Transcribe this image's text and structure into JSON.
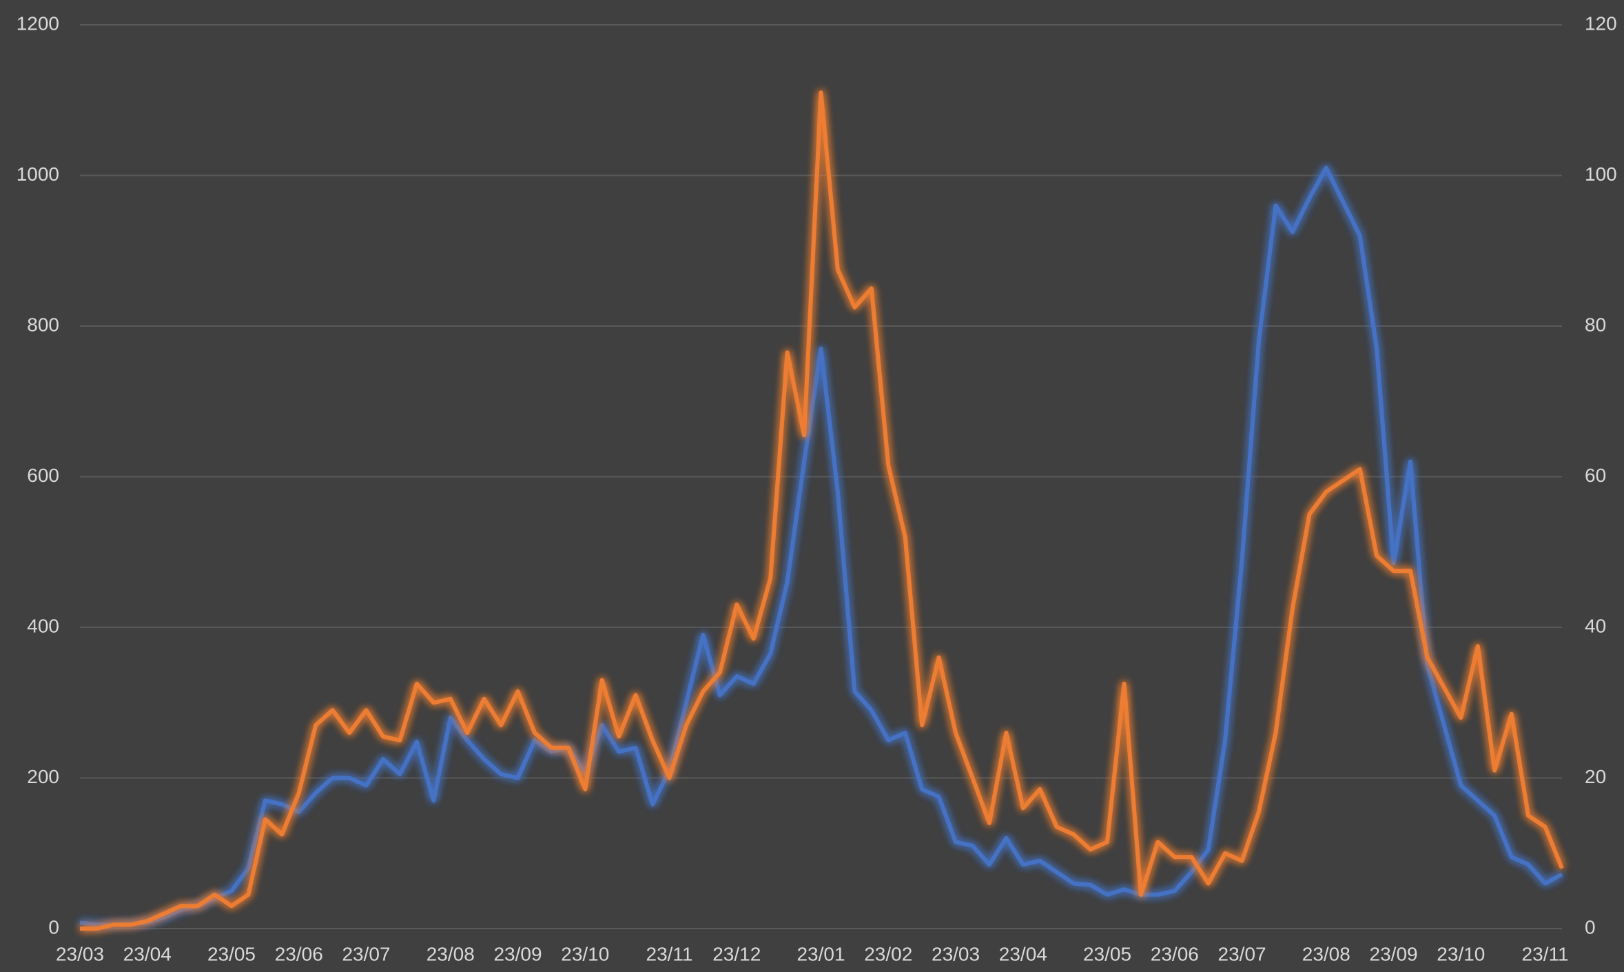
{
  "chart_data": {
    "type": "line",
    "categories": [
      "23/03",
      null,
      null,
      null,
      "23/04",
      null,
      null,
      null,
      null,
      "23/05",
      null,
      null,
      null,
      "23/06",
      null,
      null,
      null,
      "23/07",
      null,
      null,
      null,
      null,
      "23/08",
      null,
      null,
      null,
      "23/09",
      null,
      null,
      null,
      "23/10",
      null,
      null,
      null,
      null,
      "23/11",
      null,
      null,
      null,
      "23/12",
      null,
      null,
      null,
      null,
      "23/01",
      null,
      null,
      null,
      "23/02",
      null,
      null,
      null,
      "23/03",
      null,
      null,
      null,
      "23/04",
      null,
      null,
      null,
      null,
      "23/05",
      null,
      null,
      null,
      "23/06",
      null,
      null,
      null,
      "23/07",
      null,
      null,
      null,
      null,
      "23/08",
      null,
      null,
      null,
      "23/09",
      null,
      null,
      null,
      "23/10",
      null,
      null,
      null,
      null,
      "23/11",
      null
    ],
    "series": [
      {
        "color": "#4472c4",
        "axis": "y",
        "values": [
          8,
          5,
          5,
          6,
          8,
          15,
          25,
          30,
          40,
          50,
          80,
          170,
          165,
          155,
          180,
          200,
          200,
          190,
          225,
          205,
          248,
          170,
          280,
          250,
          225,
          205,
          200,
          250,
          235,
          240,
          205,
          270,
          235,
          240,
          165,
          210,
          300,
          390,
          310,
          335,
          325,
          365,
          460,
          620,
          770,
          580,
          315,
          290,
          250,
          260,
          185,
          175,
          115,
          110,
          85,
          120,
          85,
          90,
          75,
          60,
          58,
          45,
          52,
          45,
          45,
          50,
          75,
          105,
          250,
          490,
          780,
          960,
          925,
          970,
          1010,
          965,
          920,
          770,
          485,
          620,
          350,
          270,
          190,
          170,
          150,
          95,
          85,
          60,
          72
        ]
      },
      {
        "color": "#ed7d31",
        "axis": "y2",
        "values": [
          0,
          0,
          0.5,
          0.5,
          1,
          2,
          3,
          3,
          4.5,
          3,
          4.5,
          14.5,
          12.5,
          18,
          27,
          29,
          26,
          29,
          25.5,
          25,
          32.5,
          30,
          30.5,
          26,
          30.5,
          27,
          31.5,
          26,
          24,
          24,
          18.5,
          33,
          25.5,
          31,
          25,
          20,
          27,
          31.5,
          34,
          43,
          38.5,
          46.5,
          76.5,
          65.5,
          111,
          87.5,
          82.5,
          85,
          61.5,
          52,
          27,
          36,
          26,
          20,
          14,
          26,
          16,
          18.5,
          13.5,
          12.5,
          10.5,
          11.5,
          32.5,
          4.5,
          11.5,
          9.5,
          9.5,
          6,
          10,
          9,
          15.5,
          26,
          42.5,
          55,
          58,
          59.5,
          61,
          49.5,
          47.5,
          47.5,
          36,
          32,
          28,
          37.5,
          21,
          28.5,
          15,
          13.5,
          8
        ]
      }
    ],
    "ylim": [
      0,
      1200
    ],
    "yticks": [
      0,
      200,
      400,
      600,
      800,
      1000,
      1200
    ],
    "y2lim": [
      0,
      120
    ],
    "y2ticks": [
      0,
      20,
      40,
      60,
      80,
      100,
      120
    ],
    "grid": true
  }
}
